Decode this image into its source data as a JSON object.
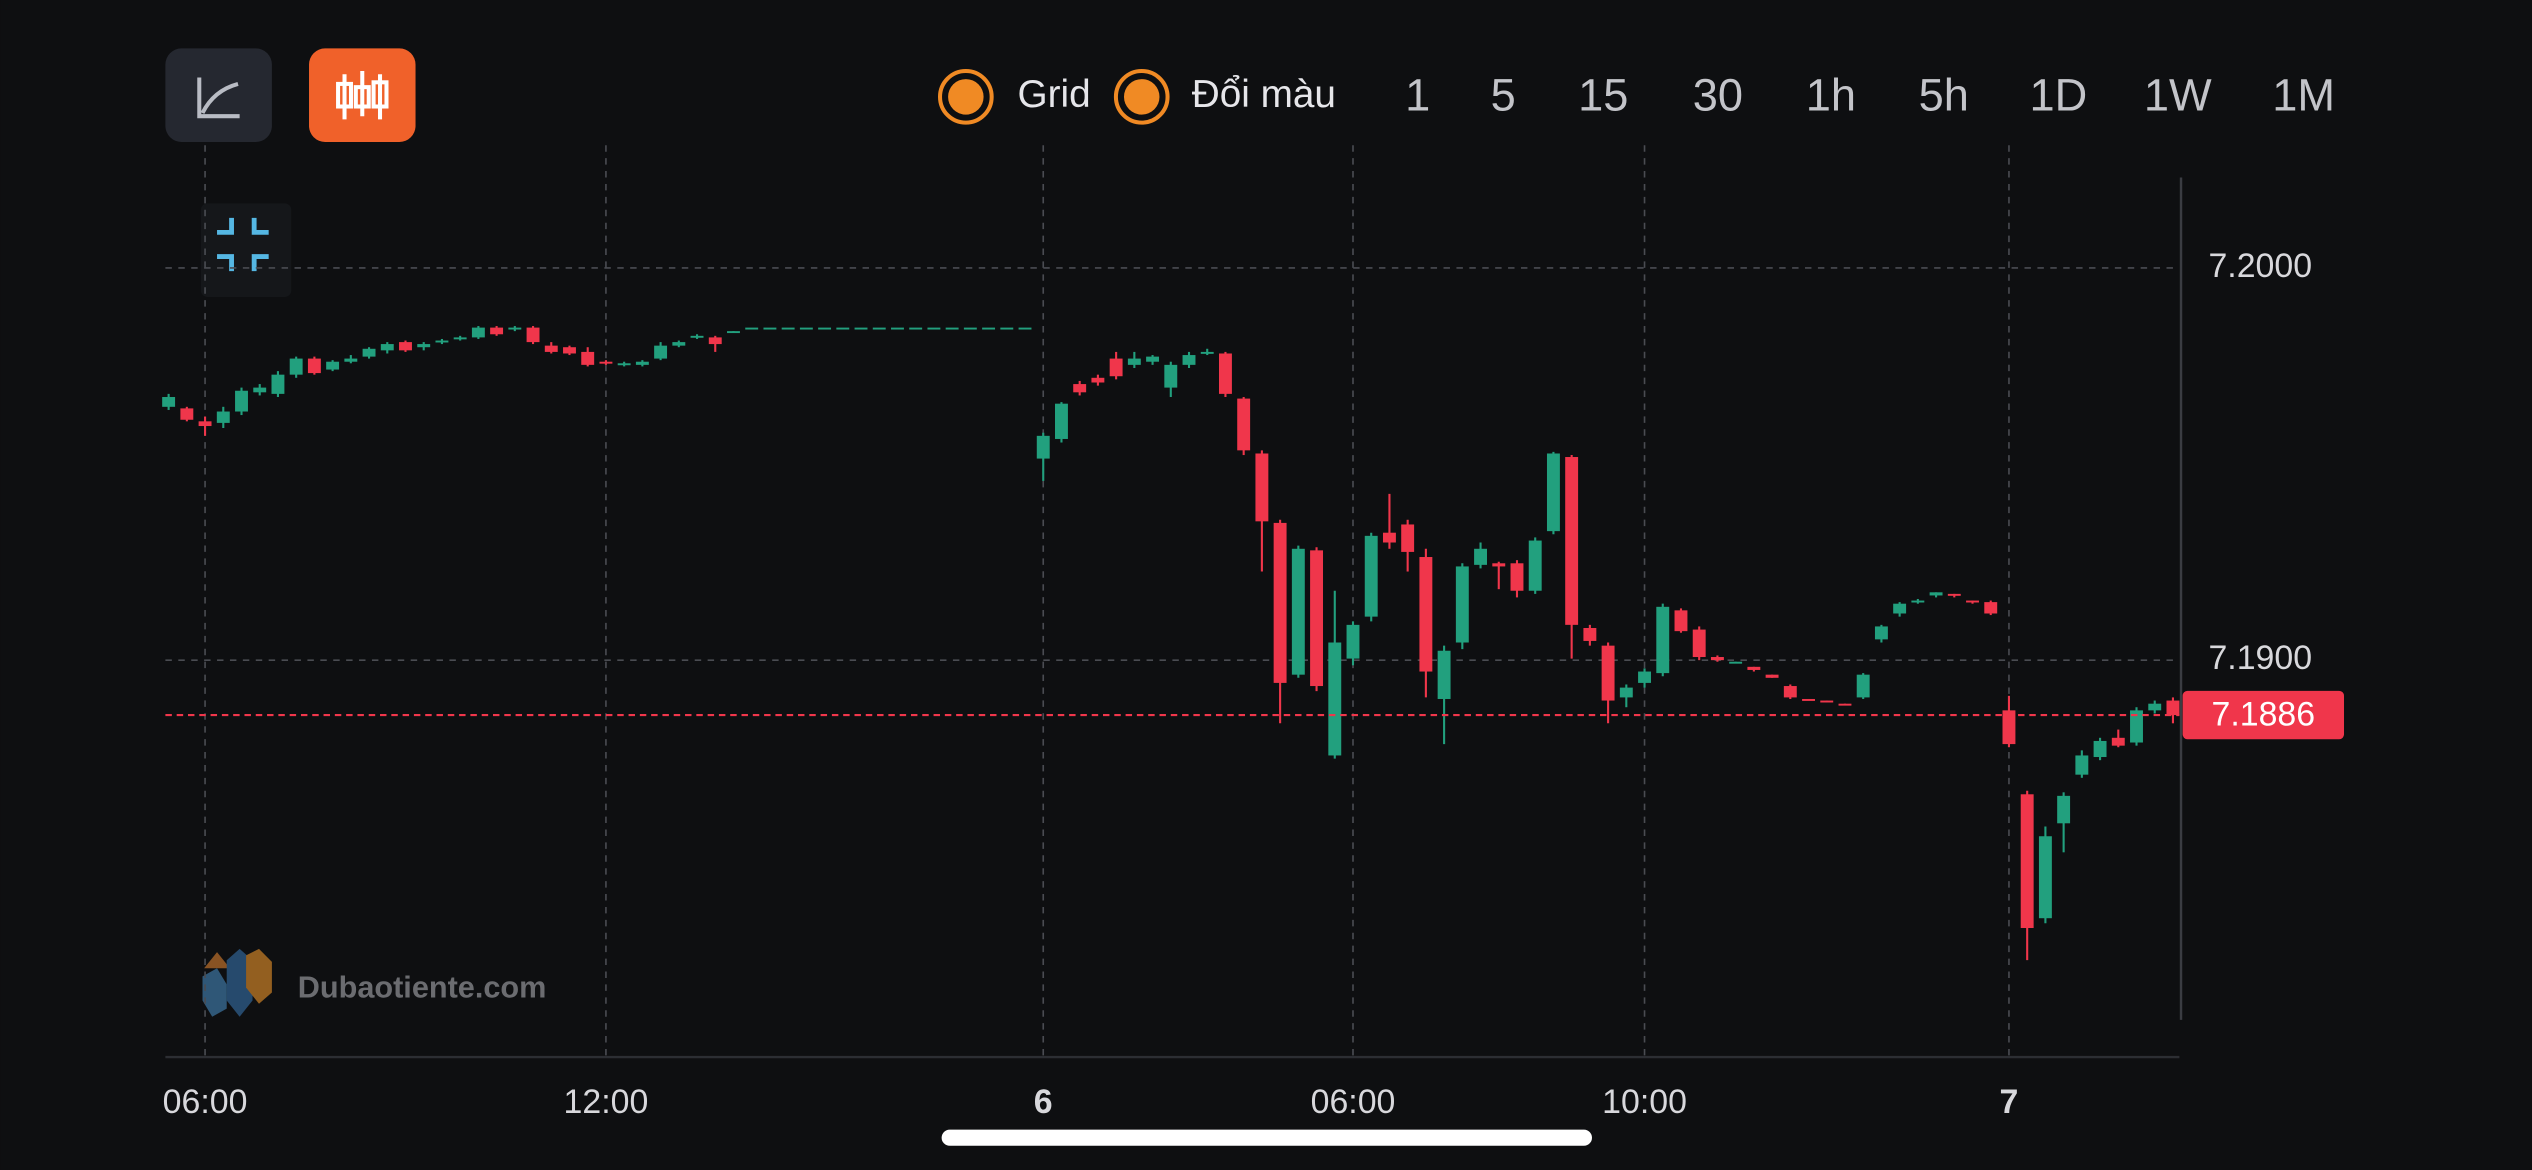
{
  "toolbar": {
    "toggles": [
      "Grid",
      "Đổi màu"
    ],
    "intervals": [
      "1",
      "5",
      "15",
      "30",
      "1h",
      "5h",
      "1D",
      "1W",
      "1M"
    ],
    "active_interval": 2
  },
  "watermark": "Dubaotiente.com",
  "chart_data": {
    "type": "candlestick",
    "up_color": "#22a07e",
    "down_color": "#f0364b",
    "grid": true,
    "ylim": [
      7.17988,
      7.20313
    ],
    "yticks": [
      {
        "value": 7.2,
        "label": "7.2000"
      },
      {
        "value": 7.19,
        "label": "7.1900"
      }
    ],
    "last_price": {
      "value": 7.1886,
      "label": "7.1886"
    },
    "categories": [
      null,
      null,
      "06:00",
      null,
      null,
      null,
      null,
      null,
      null,
      null,
      null,
      null,
      null,
      null,
      null,
      null,
      null,
      null,
      null,
      null,
      null,
      null,
      null,
      null,
      "12:00",
      null,
      null,
      null,
      null,
      null,
      null,
      null,
      null,
      null,
      null,
      null,
      null,
      null,
      null,
      null,
      null,
      null,
      null,
      null,
      null,
      null,
      null,
      null,
      "6",
      null,
      null,
      null,
      null,
      null,
      null,
      null,
      null,
      null,
      null,
      null,
      null,
      null,
      null,
      null,
      null,
      "06:00",
      null,
      null,
      null,
      null,
      null,
      null,
      null,
      null,
      null,
      null,
      null,
      null,
      null,
      null,
      null,
      "10:00",
      null,
      null,
      null,
      null,
      null,
      null,
      null,
      null,
      null,
      null,
      null,
      null,
      null,
      null,
      null,
      null,
      null,
      null,
      null,
      "7",
      null,
      null,
      null,
      null,
      null,
      null,
      null,
      null,
      null
    ],
    "open": [
      7.19646,
      7.19642,
      7.19609,
      7.19605,
      7.19634,
      7.19683,
      7.19679,
      7.19728,
      7.19769,
      7.19741,
      7.19761,
      7.19774,
      7.1979,
      7.19811,
      7.19798,
      7.19811,
      7.19819,
      7.19823,
      7.19848,
      7.19844,
      7.19848,
      7.19802,
      7.19798,
      7.19786,
      7.19761,
      7.19753,
      7.19753,
      7.19769,
      7.19802,
      7.19823,
      7.19823,
      7.19835,
      7.19848,
      7.19848,
      7.19848,
      7.19848,
      7.19848,
      7.19848,
      7.19848,
      7.19848,
      7.19848,
      7.19848,
      7.19848,
      7.19848,
      7.19848,
      7.19848,
      7.19848,
      7.19848,
      7.19514,
      7.19564,
      7.19704,
      7.1972,
      7.19769,
      7.19753,
      7.19761,
      7.19695,
      7.19753,
      7.19782,
      7.19782,
      7.19667,
      7.19527,
      7.1935,
      7.18963,
      7.1928,
      7.18757,
      7.19004,
      7.19111,
      7.19325,
      7.19346,
      7.19263,
      7.18901,
      7.19045,
      7.19243,
      7.19247,
      7.19247,
      7.19177,
      7.19329,
      7.19518,
      7.19082,
      7.19037,
      7.18905,
      7.18942,
      7.18967,
      7.19127,
      7.19078,
      7.19008,
      7.18992,
      7.18983,
      7.18963,
      7.18934,
      7.18901,
      7.18897,
      7.18889,
      7.18905,
      7.19053,
      7.19119,
      7.19148,
      7.19165,
      7.19169,
      7.19152,
      7.19148,
      7.18872,
      7.18658,
      7.18342,
      7.18584,
      7.18708,
      7.18753,
      7.18802,
      7.1879,
      7.18872,
      7.18897
    ],
    "high": [
      7.19679,
      7.19646,
      7.19621,
      7.19646,
      7.19695,
      7.19704,
      7.19737,
      7.19774,
      7.19774,
      7.19765,
      7.19778,
      7.19798,
      7.19811,
      7.19815,
      7.19811,
      7.19819,
      7.19827,
      7.19852,
      7.19852,
      7.19852,
      7.19852,
      7.19811,
      7.19802,
      7.19798,
      7.19765,
      7.19761,
      7.19765,
      7.19811,
      7.19815,
      7.19831,
      7.19827,
      7.19839,
      7.19848,
      7.19848,
      7.19848,
      7.19848,
      7.19848,
      7.19848,
      7.19848,
      7.19848,
      7.19848,
      7.19848,
      7.19848,
      7.19848,
      7.19848,
      7.19848,
      7.19848,
      7.19848,
      7.1958,
      7.19658,
      7.19712,
      7.19728,
      7.19786,
      7.19786,
      7.19778,
      7.19761,
      7.19786,
      7.19794,
      7.19786,
      7.19671,
      7.19535,
      7.19358,
      7.19292,
      7.19288,
      7.19177,
      7.19099,
      7.19325,
      7.19424,
      7.19358,
      7.19284,
      7.19037,
      7.19247,
      7.193,
      7.19251,
      7.19255,
      7.19313,
      7.19531,
      7.19523,
      7.1909,
      7.19045,
      7.18938,
      7.18979,
      7.19144,
      7.19132,
      7.19086,
      7.19012,
      7.18996,
      7.18983,
      7.18963,
      7.18938,
      7.18901,
      7.18897,
      7.18889,
      7.18967,
      7.1909,
      7.19148,
      7.19156,
      7.19173,
      7.19169,
      7.19152,
      7.19152,
      7.18909,
      7.18667,
      7.18576,
      7.18663,
      7.1877,
      7.18802,
      7.18823,
      7.1888,
      7.18897,
      7.18905
    ],
    "low": [
      7.19638,
      7.19609,
      7.19572,
      7.19592,
      7.19625,
      7.19675,
      7.19671,
      7.1972,
      7.19728,
      7.19737,
      7.19757,
      7.19769,
      7.19782,
      7.19786,
      7.1979,
      7.19806,
      7.19815,
      7.19819,
      7.19827,
      7.19839,
      7.19806,
      7.19782,
      7.19778,
      7.19749,
      7.19753,
      7.19749,
      7.19749,
      7.19765,
      7.19798,
      7.19819,
      7.19786,
      7.19835,
      7.19848,
      7.19848,
      7.19848,
      7.19848,
      7.19848,
      7.19848,
      7.19848,
      7.19848,
      7.19848,
      7.19848,
      7.19848,
      7.19848,
      7.19848,
      7.19848,
      7.19848,
      7.19848,
      7.19457,
      7.19555,
      7.19675,
      7.197,
      7.19716,
      7.19745,
      7.19753,
      7.19671,
      7.19745,
      7.19778,
      7.19671,
      7.19523,
      7.19226,
      7.18839,
      7.18955,
      7.18921,
      7.18749,
      7.18987,
      7.19099,
      7.19284,
      7.19226,
      7.18905,
      7.18786,
      7.19028,
      7.19234,
      7.19181,
      7.1916,
      7.19169,
      7.19321,
      7.19004,
      7.19037,
      7.18839,
      7.1888,
      7.1893,
      7.18959,
      7.1907,
      7.19,
      7.18996,
      7.18992,
      7.18971,
      7.18955,
      7.18901,
      7.18897,
      7.18893,
      7.18885,
      7.18901,
      7.19045,
      7.19111,
      7.19144,
      7.1916,
      7.1916,
      7.19144,
      7.19115,
      7.18778,
      7.18235,
      7.18329,
      7.1851,
      7.187,
      7.18745,
      7.18778,
      7.18782,
      7.18864,
      7.18839
    ],
    "close": [
      7.19671,
      7.19613,
      7.19597,
      7.19634,
      7.19687,
      7.19695,
      7.19728,
      7.19769,
      7.19732,
      7.19761,
      7.19769,
      7.19794,
      7.19806,
      7.1979,
      7.19806,
      7.19815,
      7.19823,
      7.19848,
      7.19831,
      7.19848,
      7.19811,
      7.19786,
      7.19782,
      7.19753,
      7.19757,
      7.19757,
      7.19761,
      7.19802,
      7.19811,
      7.19827,
      7.19806,
      7.19839,
      7.19848,
      7.19848,
      7.19848,
      7.19848,
      7.19848,
      7.19848,
      7.19848,
      7.19848,
      7.19848,
      7.19848,
      7.19848,
      7.19848,
      7.19848,
      7.19848,
      7.19848,
      7.19848,
      7.19572,
      7.19654,
      7.19683,
      7.19708,
      7.19724,
      7.19769,
      7.19774,
      7.19753,
      7.19778,
      7.19786,
      7.19679,
      7.19535,
      7.19354,
      7.18942,
      7.19284,
      7.18934,
      7.19045,
      7.1909,
      7.19317,
      7.193,
      7.19276,
      7.18971,
      7.19024,
      7.19239,
      7.19284,
      7.19239,
      7.19177,
      7.19305,
      7.19527,
      7.1909,
      7.19049,
      7.18897,
      7.1893,
      7.18971,
      7.19136,
      7.19074,
      7.19008,
      7.19,
      7.18996,
      7.18975,
      7.18955,
      7.18905,
      7.18897,
      7.18893,
      7.18885,
      7.18963,
      7.19086,
      7.19144,
      7.19152,
      7.19173,
      7.19165,
      7.19148,
      7.19119,
      7.18786,
      7.18317,
      7.18551,
      7.18654,
      7.18757,
      7.18794,
      7.18782,
      7.18872,
      7.18889,
      7.1886
    ]
  }
}
